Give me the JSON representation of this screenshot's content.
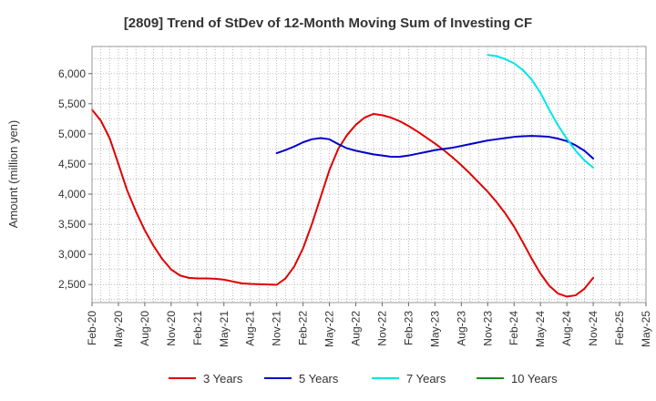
{
  "chart_data": {
    "type": "line",
    "title": "[2809]  Trend of StDev of 12-Month Moving Sum of Investing CF",
    "xlabel": "",
    "ylabel": "Amount (million yen)",
    "ylim": [
      2200,
      6450
    ],
    "yticks": [
      2500,
      3000,
      3500,
      4000,
      4500,
      5000,
      5500,
      6000
    ],
    "ytick_labels": [
      "2,500",
      "3,000",
      "3,500",
      "4,000",
      "4,500",
      "5,000",
      "5,500",
      "6,000"
    ],
    "x_start": "Feb-20",
    "x_end": "May-25",
    "xtick_labels": [
      "Feb-20",
      "May-20",
      "Aug-20",
      "Nov-20",
      "Feb-21",
      "May-21",
      "Aug-21",
      "Nov-21",
      "Feb-22",
      "May-22",
      "Aug-22",
      "Nov-22",
      "Feb-23",
      "May-23",
      "Aug-23",
      "Nov-23",
      "Feb-24",
      "May-24",
      "Aug-24",
      "Nov-24",
      "Feb-25",
      "May-25"
    ],
    "grid": true,
    "legend_position": "bottom",
    "series": [
      {
        "name": "3 Years",
        "color": "#e00000",
        "x": [
          "Feb-20",
          "Mar-20",
          "Apr-20",
          "May-20",
          "Jun-20",
          "Jul-20",
          "Aug-20",
          "Sep-20",
          "Oct-20",
          "Nov-20",
          "Dec-20",
          "Jan-21",
          "Feb-21",
          "Mar-21",
          "Apr-21",
          "May-21",
          "Jun-21",
          "Jul-21",
          "Aug-21",
          "Sep-21",
          "Oct-21",
          "Nov-21",
          "Dec-21",
          "Jan-22",
          "Feb-22",
          "Mar-22",
          "Apr-22",
          "May-22",
          "Jun-22",
          "Jul-22",
          "Aug-22",
          "Sep-22",
          "Oct-22",
          "Nov-22",
          "Dec-22",
          "Jan-23",
          "Feb-23",
          "Mar-23",
          "Apr-23",
          "May-23",
          "Jun-23",
          "Jul-23",
          "Aug-23",
          "Sep-23",
          "Oct-23",
          "Nov-23",
          "Dec-23",
          "Jan-24",
          "Feb-24",
          "Mar-24",
          "Apr-24",
          "May-24",
          "Jun-24",
          "Jul-24",
          "Aug-24",
          "Sep-24",
          "Oct-24",
          "Nov-24"
        ],
        "values": [
          5400,
          5220,
          4930,
          4500,
          4060,
          3710,
          3400,
          3140,
          2920,
          2750,
          2650,
          2610,
          2600,
          2600,
          2595,
          2580,
          2550,
          2520,
          2510,
          2505,
          2500,
          2495,
          2600,
          2800,
          3100,
          3500,
          3950,
          4400,
          4750,
          4980,
          5150,
          5270,
          5330,
          5310,
          5270,
          5210,
          5130,
          5040,
          4940,
          4840,
          4730,
          4610,
          4480,
          4340,
          4190,
          4040,
          3870,
          3680,
          3460,
          3200,
          2930,
          2680,
          2480,
          2350,
          2300,
          2320,
          2430,
          2610
        ]
      },
      {
        "name": "5 Years",
        "color": "#0000cc",
        "x": [
          "Nov-21",
          "Dec-21",
          "Jan-22",
          "Feb-22",
          "Mar-22",
          "Apr-22",
          "May-22",
          "Jun-22",
          "Jul-22",
          "Aug-22",
          "Sep-22",
          "Oct-22",
          "Nov-22",
          "Dec-22",
          "Jan-23",
          "Feb-23",
          "Mar-23",
          "Apr-23",
          "May-23",
          "Jun-23",
          "Jul-23",
          "Aug-23",
          "Sep-23",
          "Oct-23",
          "Nov-23",
          "Dec-23",
          "Jan-24",
          "Feb-24",
          "Mar-24",
          "Apr-24",
          "May-24",
          "Jun-24",
          "Jul-24",
          "Aug-24",
          "Sep-24",
          "Oct-24",
          "Nov-24"
        ],
        "values": [
          4680,
          4730,
          4790,
          4860,
          4910,
          4930,
          4910,
          4830,
          4760,
          4720,
          4690,
          4660,
          4640,
          4620,
          4620,
          4640,
          4670,
          4700,
          4730,
          4750,
          4770,
          4800,
          4830,
          4860,
          4890,
          4910,
          4930,
          4950,
          4960,
          4965,
          4960,
          4950,
          4920,
          4880,
          4810,
          4720,
          4590
        ]
      },
      {
        "name": "7 Years",
        "color": "#00e5e5",
        "x": [
          "Nov-23",
          "Dec-23",
          "Jan-24",
          "Feb-24",
          "Mar-24",
          "Apr-24",
          "May-24",
          "Jun-24",
          "Jul-24",
          "Aug-24",
          "Sep-24",
          "Oct-24",
          "Nov-24"
        ],
        "values": [
          6310,
          6290,
          6240,
          6170,
          6060,
          5900,
          5680,
          5400,
          5140,
          4920,
          4720,
          4560,
          4440
        ]
      },
      {
        "name": "10 Years",
        "color": "#1a8a1a",
        "x": [],
        "values": []
      }
    ]
  }
}
